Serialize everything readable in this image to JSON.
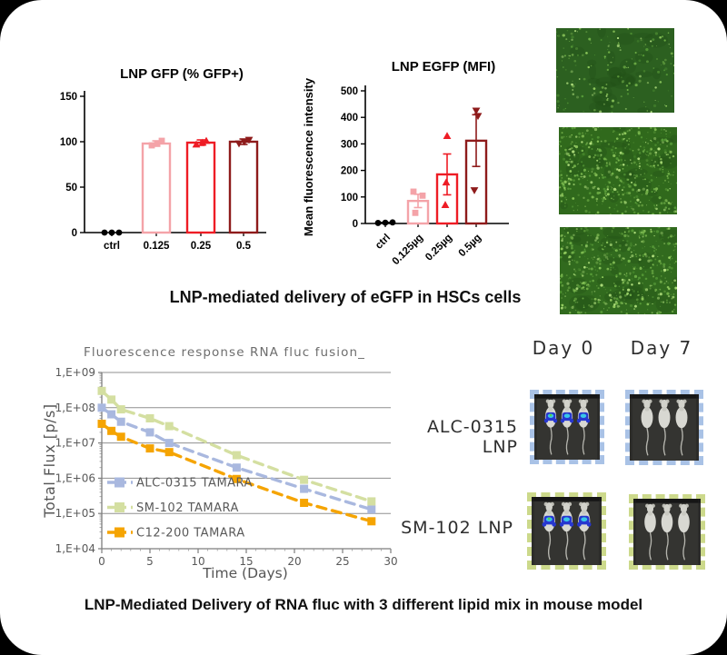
{
  "captions": {
    "top": "LNP-mediated delivery of eGFP in HSCs cells",
    "bottom": "LNP-Mediated Delivery of RNA fluc with 3 different lipid mix in mouse model"
  },
  "chart_data": [
    {
      "type": "bar",
      "title": "LNP GFP (% GFP+)",
      "xlabel": "",
      "ylabel": "",
      "categories": [
        "ctrl",
        "0.125",
        "0.25",
        "0.5"
      ],
      "values": [
        0,
        98,
        99,
        100
      ],
      "error_range": [
        null,
        [
          95,
          101
        ],
        [
          96,
          102
        ],
        [
          97,
          103
        ]
      ],
      "points": [
        [
          0,
          0,
          0
        ],
        [
          96,
          98,
          101
        ],
        [
          97,
          99,
          101
        ],
        [
          98,
          100,
          102
        ]
      ],
      "bar_colors": [
        "#000000",
        "#f4a3a8",
        "#ee1c25",
        "#8e1b1b"
      ],
      "marker_shapes": [
        "circle",
        "square",
        "triangle-up",
        "triangle-down"
      ],
      "ylim": [
        0,
        150
      ],
      "yticks": [
        0,
        50,
        100,
        150
      ],
      "grid": "off"
    },
    {
      "type": "bar",
      "title": "LNP EGFP (MFI)",
      "xlabel": "",
      "ylabel": "Mean fluorescence intensity",
      "categories": [
        "ctrl",
        "0.125µg",
        "0.25µg",
        "0.5µg"
      ],
      "values": [
        3,
        85,
        185,
        312
      ],
      "error_range": [
        null,
        [
          60,
          110
        ],
        [
          108,
          262
        ],
        [
          215,
          410
        ]
      ],
      "points": [
        [
          2,
          3,
          4
        ],
        [
          40,
          105,
          120
        ],
        [
          70,
          155,
          330
        ],
        [
          125,
          405,
          425
        ]
      ],
      "bar_colors": [
        "#000000",
        "#f4a3a8",
        "#ee1c25",
        "#8e1b1b"
      ],
      "marker_shapes": [
        "circle",
        "square",
        "triangle-up",
        "triangle-down"
      ],
      "ylim": [
        0,
        500
      ],
      "yticks": [
        0,
        100,
        200,
        300,
        400,
        500
      ],
      "grid": "off"
    },
    {
      "type": "line",
      "title": "Fluorescence response RNA fluc fusion_",
      "xlabel": "Time (Days)",
      "ylabel": "Total Flux [p/s]",
      "x": [
        0,
        1,
        2,
        5,
        7,
        14,
        21,
        28
      ],
      "series": [
        {
          "name": "ALC-0315 TAMARA",
          "color": "#a9b8df",
          "values": [
            100000000.0,
            65000000.0,
            40000000.0,
            20000000.0,
            10000000.0,
            2000000.0,
            500000.0,
            130000.0
          ]
        },
        {
          "name": "SM-102 TAMARA",
          "color": "#d4dfa1",
          "values": [
            300000000.0,
            170000000.0,
            90000000.0,
            50000000.0,
            30000000.0,
            4500000.0,
            900000.0,
            220000.0
          ]
        },
        {
          "name": "C12-200 TAMARA",
          "color": "#f5a402",
          "values": [
            35000000.0,
            22000000.0,
            15000000.0,
            7000000.0,
            5500000.0,
            950000.0,
            200000.0,
            60000.0
          ]
        }
      ],
      "ylog": true,
      "ylim": [
        10000.0,
        1000000000.0
      ],
      "ytick_labels": [
        "1,E+04",
        "1,E+05",
        "1,E+06",
        "1,E+07",
        "1,E+08",
        "1,E+09"
      ],
      "xticks": [
        0,
        5,
        10,
        15,
        20,
        25,
        30
      ],
      "xlim": [
        0,
        30
      ],
      "grid": "horizontal",
      "legend_position": "inside-left",
      "line_style": "dashed"
    }
  ],
  "micrographs": {
    "items": [
      {
        "density": 0.35,
        "base": "#2c6020"
      },
      {
        "density": 1.0,
        "base": "#30691c"
      },
      {
        "density": 1.0,
        "base": "#316a1e"
      }
    ],
    "speckle_colors": [
      "#569a37",
      "#74b44a",
      "#93cd5f",
      "#b2e07e"
    ]
  },
  "mouse_panel": {
    "col_headers": [
      "Day 0",
      "Day 7"
    ],
    "rows": [
      {
        "label": "ALC-0315 LNP",
        "border_color": "#a9c2e6",
        "cells": [
          {
            "col": "Day 0",
            "signal": true
          },
          {
            "col": "Day 7",
            "signal": false
          }
        ]
      },
      {
        "label": "SM-102 LNP",
        "border_color": "#ccd98b",
        "cells": [
          {
            "col": "Day 0",
            "signal": true
          },
          {
            "col": "Day 7",
            "signal": false
          }
        ]
      }
    ]
  },
  "colors": {
    "bar_pink": "#f4a3a8",
    "bar_red": "#ee1c25",
    "bar_darkred": "#8e1b1b",
    "line_blue": "#a9b8df",
    "line_green": "#d4dfa1",
    "line_orange": "#f5a402",
    "axis_gray": "#7d7d7d",
    "text_gray": "#595959",
    "signal_blue": "#2737cf",
    "signal_cyan": "#39c6e8"
  }
}
